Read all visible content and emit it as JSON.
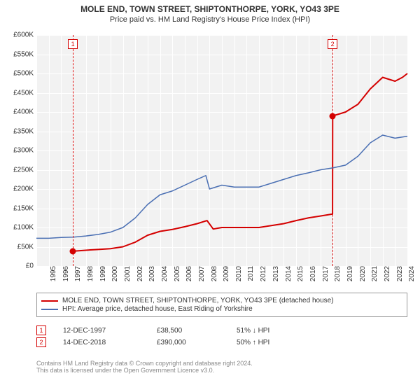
{
  "title": "MOLE END, TOWN STREET, SHIPTONTHORPE, YORK, YO43 3PE",
  "subtitle": "Price paid vs. HM Land Registry's House Price Index (HPI)",
  "chart": {
    "type": "line",
    "background_color": "#f2f2f2",
    "grid_color": "#ffffff",
    "x": {
      "min": 1995,
      "max": 2025,
      "tick_step": 1,
      "tick_rotation_deg": -90,
      "tick_fontsize": 10
    },
    "y": {
      "min": 0,
      "max": 600000,
      "tick_step": 50000,
      "tick_labels": [
        "£0",
        "£50K",
        "£100K",
        "£150K",
        "£200K",
        "£250K",
        "£300K",
        "£350K",
        "£400K",
        "£450K",
        "£500K",
        "£550K",
        "£600K"
      ],
      "tick_fontsize": 10
    },
    "series": [
      {
        "name": "price_paid",
        "label": "MOLE END, TOWN STREET, SHIPTONTHORPE, YORK, YO43 3PE (detached house)",
        "color": "#d40000",
        "line_width": 2,
        "points": [
          [
            1997.95,
            38500
          ],
          [
            1999,
            41000
          ],
          [
            2000,
            43000
          ],
          [
            2001,
            45000
          ],
          [
            2002,
            50000
          ],
          [
            2003,
            62000
          ],
          [
            2004,
            80000
          ],
          [
            2005,
            90000
          ],
          [
            2006,
            95000
          ],
          [
            2007,
            102000
          ],
          [
            2008,
            110000
          ],
          [
            2008.8,
            118000
          ],
          [
            2009.3,
            96000
          ],
          [
            2010,
            100000
          ],
          [
            2011,
            100000
          ],
          [
            2012,
            100000
          ],
          [
            2013,
            100000
          ],
          [
            2014,
            105000
          ],
          [
            2015,
            110000
          ],
          [
            2016,
            118000
          ],
          [
            2017,
            125000
          ],
          [
            2018,
            130000
          ],
          [
            2018.95,
            135000
          ],
          [
            2018.96,
            390000
          ],
          [
            2019.5,
            395000
          ],
          [
            2020,
            400000
          ],
          [
            2021,
            420000
          ],
          [
            2022,
            460000
          ],
          [
            2023,
            490000
          ],
          [
            2024,
            480000
          ],
          [
            2024.6,
            490000
          ],
          [
            2025,
            500000
          ]
        ]
      },
      {
        "name": "hpi",
        "label": "HPI: Average price, detached house, East Riding of Yorkshire",
        "color": "#4a6fb3",
        "line_width": 1.5,
        "points": [
          [
            1995,
            72000
          ],
          [
            1996,
            72000
          ],
          [
            1997,
            74000
          ],
          [
            1998,
            75000
          ],
          [
            1999,
            78000
          ],
          [
            2000,
            82000
          ],
          [
            2001,
            88000
          ],
          [
            2002,
            100000
          ],
          [
            2003,
            125000
          ],
          [
            2004,
            160000
          ],
          [
            2005,
            185000
          ],
          [
            2006,
            195000
          ],
          [
            2007,
            210000
          ],
          [
            2008,
            225000
          ],
          [
            2008.7,
            235000
          ],
          [
            2009,
            200000
          ],
          [
            2010,
            210000
          ],
          [
            2011,
            205000
          ],
          [
            2012,
            205000
          ],
          [
            2013,
            205000
          ],
          [
            2014,
            215000
          ],
          [
            2015,
            225000
          ],
          [
            2016,
            235000
          ],
          [
            2017,
            242000
          ],
          [
            2018,
            250000
          ],
          [
            2019,
            255000
          ],
          [
            2020,
            262000
          ],
          [
            2021,
            285000
          ],
          [
            2022,
            320000
          ],
          [
            2023,
            340000
          ],
          [
            2024,
            332000
          ],
          [
            2025,
            337000
          ]
        ]
      }
    ],
    "sales": [
      {
        "index": 1,
        "year": 1997.95,
        "price": 38500,
        "flag_color": "#d40000"
      },
      {
        "index": 2,
        "year": 2018.95,
        "price": 390000,
        "flag_color": "#d40000"
      }
    ],
    "vline_color": "#d40000",
    "marker_fill": "#d40000",
    "marker_size": 9
  },
  "legend": {
    "border_color": "#999999",
    "rows": [
      {
        "color": "#d40000",
        "label": "MOLE END, TOWN STREET, SHIPTONTHORPE, YORK, YO43 3PE (detached house)"
      },
      {
        "color": "#4a6fb3",
        "label": "HPI: Average price, detached house, East Riding of Yorkshire"
      }
    ]
  },
  "sales_table": {
    "rows": [
      {
        "index": "1",
        "flag_color": "#d40000",
        "date": "12-DEC-1997",
        "price": "£38,500",
        "delta": "51% ↓ HPI"
      },
      {
        "index": "2",
        "flag_color": "#d40000",
        "date": "14-DEC-2018",
        "price": "£390,000",
        "delta": "50% ↑ HPI"
      }
    ]
  },
  "footer": {
    "line1": "Contains HM Land Registry data © Crown copyright and database right 2024.",
    "line2": "This data is licensed under the Open Government Licence v3.0."
  }
}
